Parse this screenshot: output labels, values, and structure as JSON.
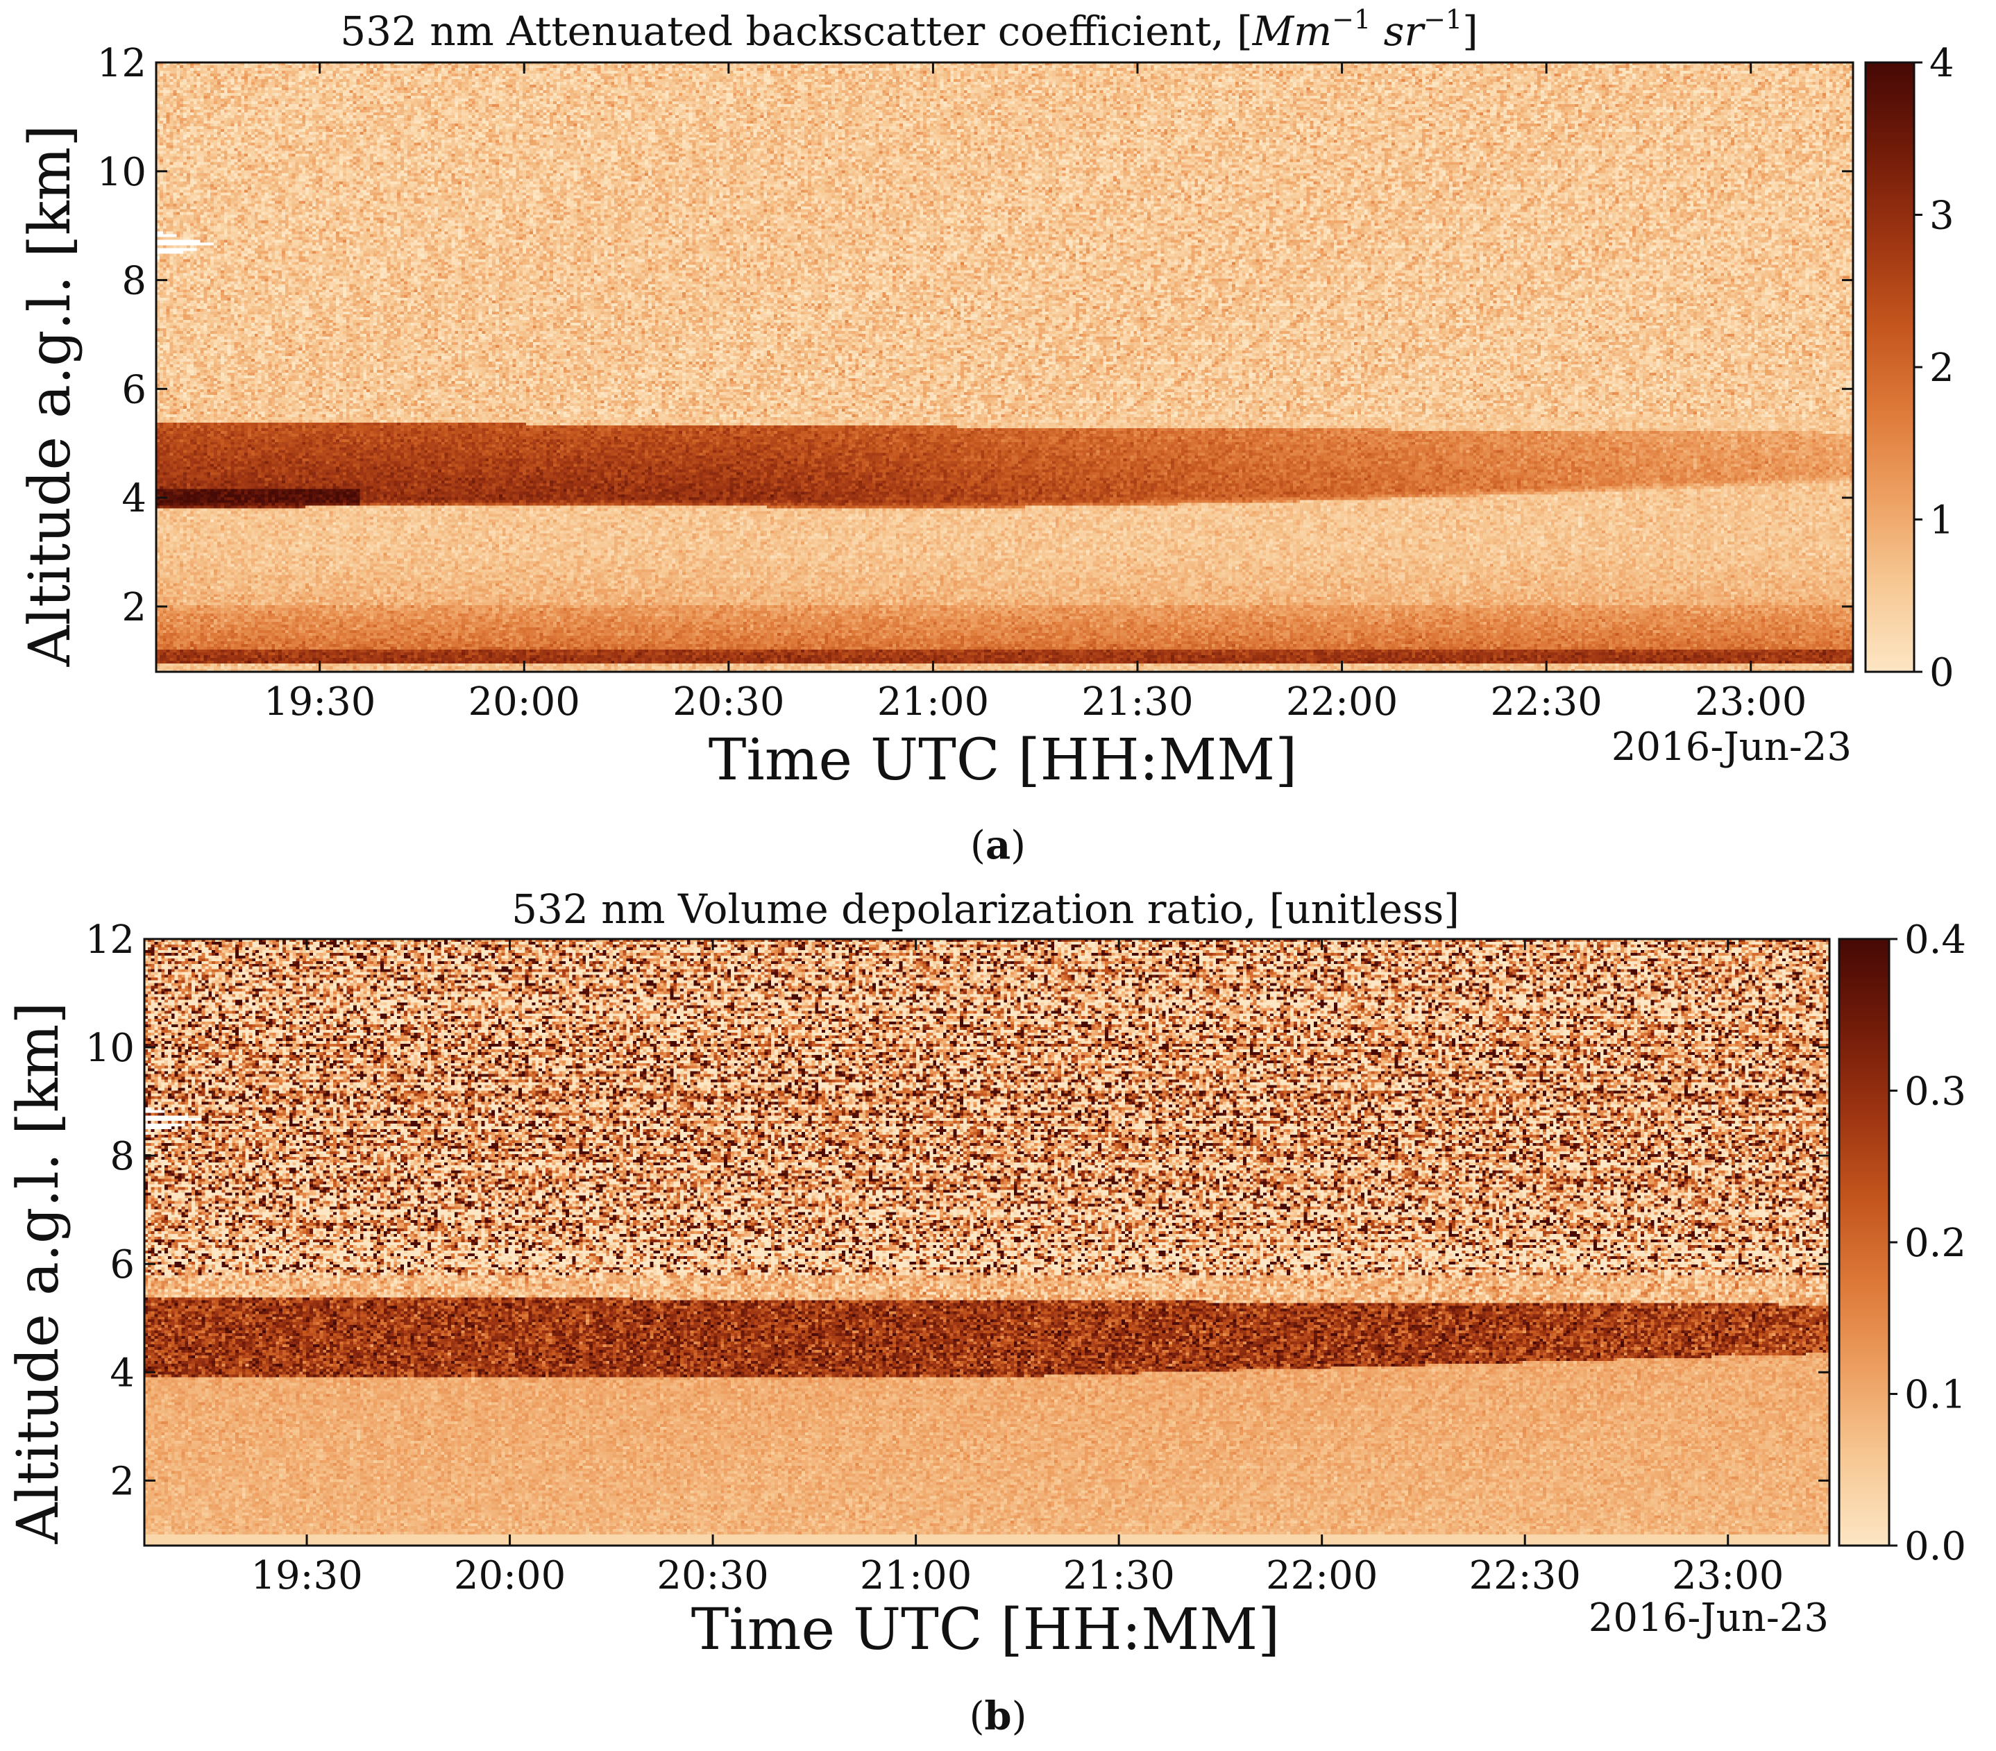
{
  "figure": {
    "caption_a": "a",
    "caption_b": "b"
  },
  "chart_data": [
    {
      "type": "heatmap",
      "panel": "a",
      "title_prefix": "532 nm Attenuated backscatter coefficient, [",
      "title_unit_base": "Mm",
      "title_unit_exp1": "−1",
      "title_unit_mid": " sr",
      "title_unit_exp2": "−1",
      "title_suffix": "]",
      "xlabel": "Time UTC [HH:MM]",
      "ylabel": "Altitude a.g.l. [km]",
      "date_label": "2016-Jun-23",
      "x_range_hours": [
        19.1,
        23.25
      ],
      "x_ticks": [
        19.5,
        20.0,
        20.5,
        21.0,
        21.5,
        22.0,
        22.5,
        23.0
      ],
      "x_tick_labels": [
        "19:30",
        "20:00",
        "20:30",
        "21:00",
        "21:30",
        "22:00",
        "22:30",
        "23:00"
      ],
      "ylim": [
        0.8,
        12
      ],
      "y_ticks": [
        2,
        4,
        6,
        8,
        10,
        12
      ],
      "y_tick_labels": [
        "2",
        "4",
        "6",
        "8",
        "10",
        "12"
      ],
      "colorbar": {
        "range": [
          0,
          4
        ],
        "ticks": [
          0,
          1,
          2,
          3,
          4
        ],
        "tick_labels": [
          "0",
          "1",
          "2",
          "3",
          "4"
        ],
        "colormap": "Oranges_dark"
      },
      "features": {
        "aerosol_layer_base_km": 4.0,
        "aerosol_layer_top_km": 5.3,
        "aerosol_layer_peak_value": 3.4,
        "boundary_layer_top_km": 2.0,
        "surface_peak_value": 3.5,
        "background_value": 0.6,
        "missing_data": {
          "hours": [
            19.1,
            19.25
          ],
          "altitude_km": [
            8.4,
            8.9
          ]
        }
      }
    },
    {
      "type": "heatmap",
      "panel": "b",
      "title": "532 nm Volume depolarization ratio, [unitless]",
      "xlabel": "Time UTC [HH:MM]",
      "ylabel": "Altitude a.g.l. [km]",
      "date_label": "2016-Jun-23",
      "x_range_hours": [
        19.1,
        23.25
      ],
      "x_ticks": [
        19.5,
        20.0,
        20.5,
        21.0,
        21.5,
        22.0,
        22.5,
        23.0
      ],
      "x_tick_labels": [
        "19:30",
        "20:00",
        "20:30",
        "21:00",
        "21:30",
        "22:00",
        "22:30",
        "23:00"
      ],
      "ylim": [
        0.8,
        12
      ],
      "y_ticks": [
        2,
        4,
        6,
        8,
        10,
        12
      ],
      "y_tick_labels": [
        "2",
        "4",
        "6",
        "8",
        "10",
        "12"
      ],
      "colorbar": {
        "range": [
          0,
          0.4
        ],
        "ticks": [
          0,
          0.1,
          0.2,
          0.3,
          0.4
        ],
        "tick_labels": [
          "0.0",
          "0.1",
          "0.2",
          "0.3",
          "0.4"
        ],
        "colormap": "Oranges_dark"
      },
      "features": {
        "dust_layer_base_km": 3.9,
        "dust_layer_top_km": 5.4,
        "dust_layer_value": 0.28,
        "lower_value": 0.1,
        "noise_above_km": 5.8,
        "missing_data": {
          "hours": [
            19.1,
            19.25
          ],
          "altitude_km": [
            8.4,
            8.9
          ]
        }
      }
    }
  ],
  "colormap_stops": [
    "#fde6c4",
    "#f7c995",
    "#eea163",
    "#de7a3a",
    "#c4561e",
    "#9e3512",
    "#731c0a",
    "#480a05"
  ]
}
